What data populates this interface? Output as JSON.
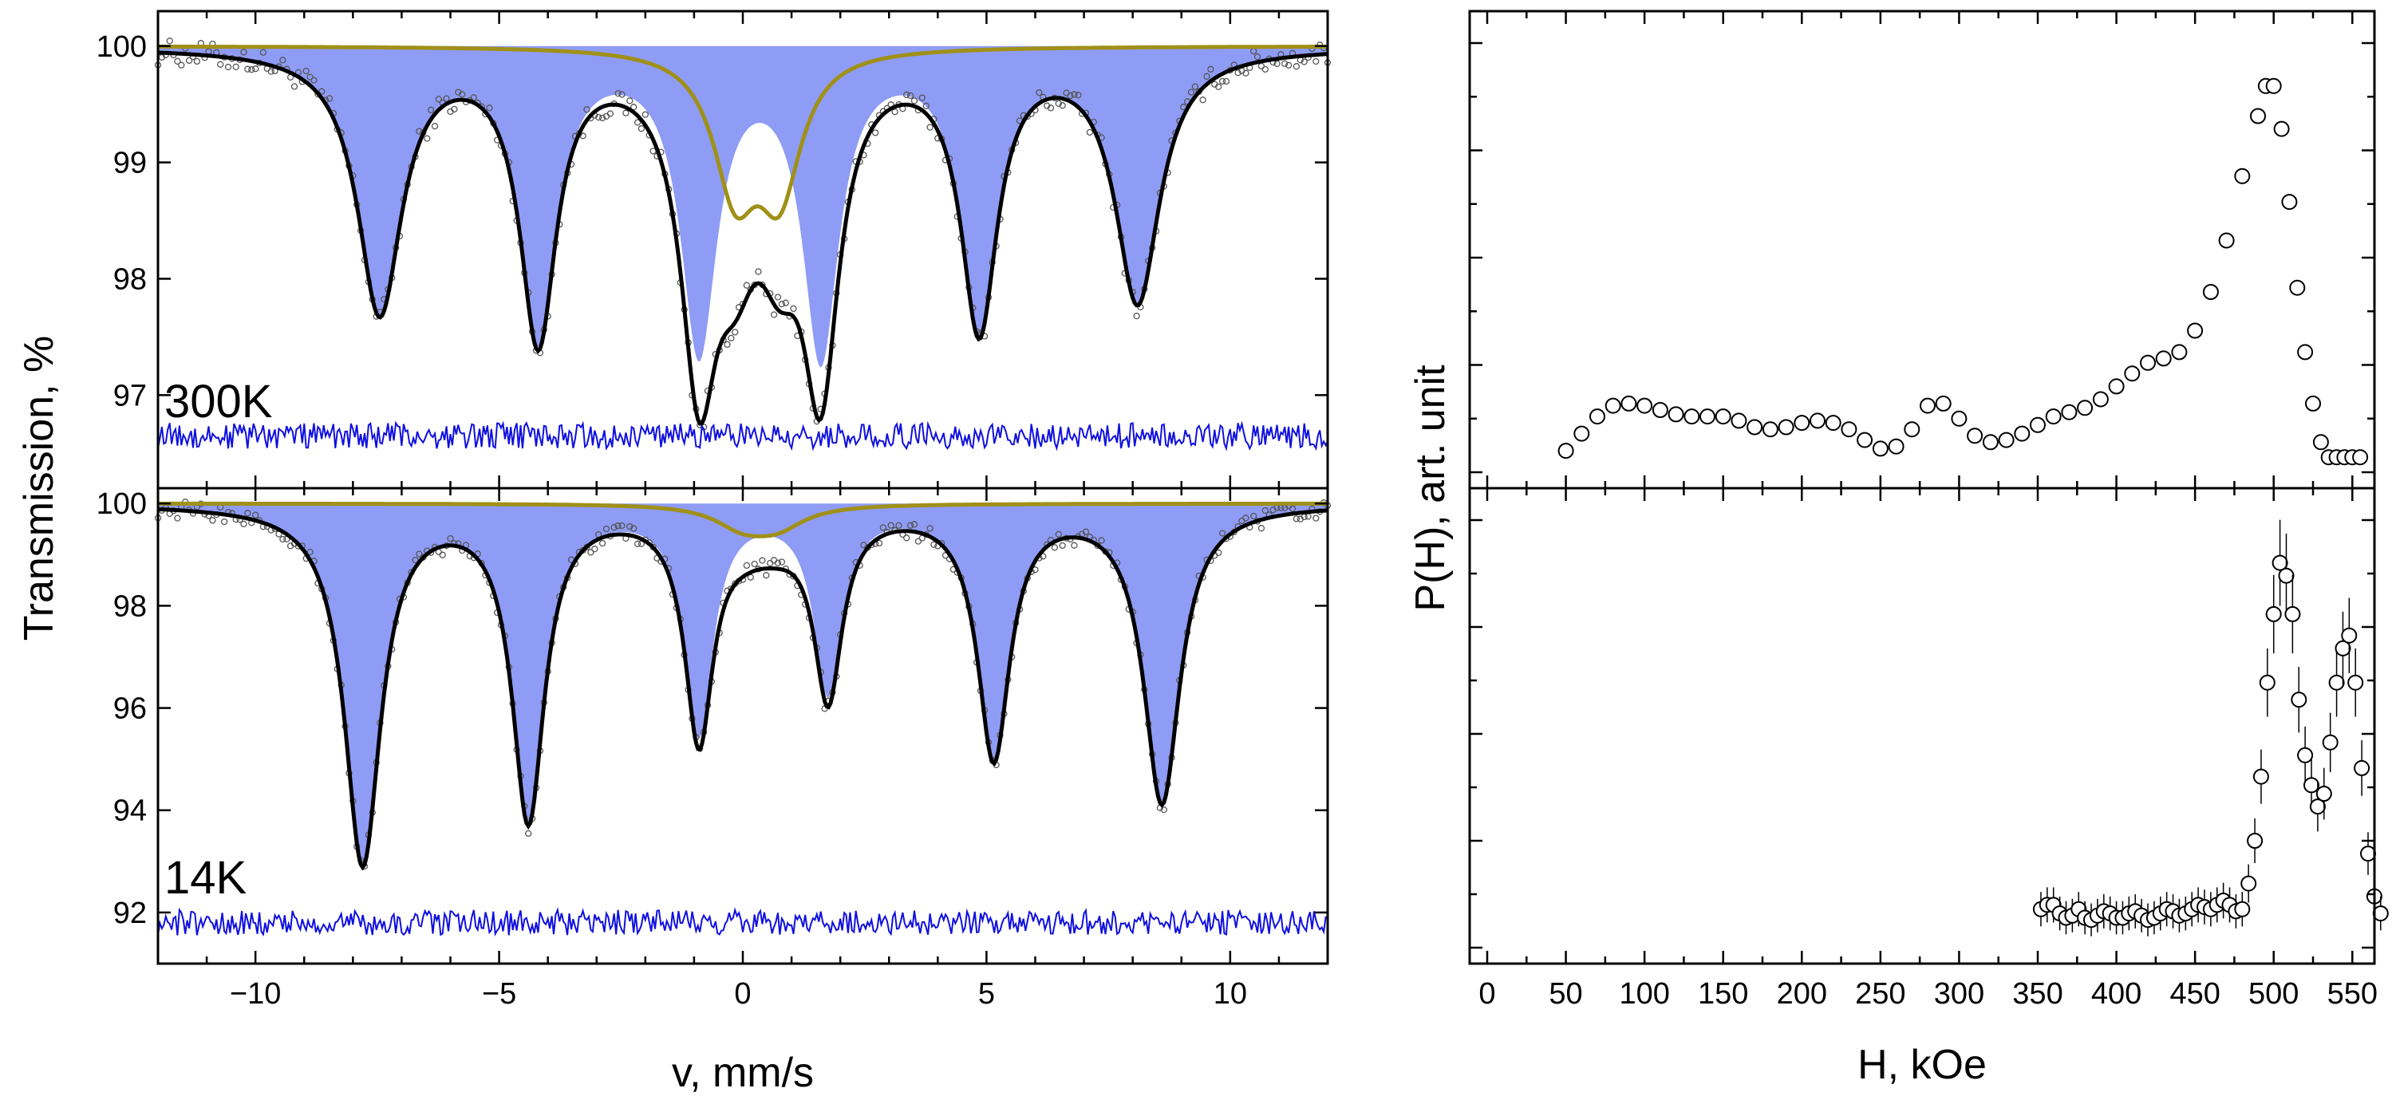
{
  "colors": {
    "fill": "#8f9cf5",
    "doublet": "#a09018",
    "fit": "#000000",
    "residual": "#1010e0",
    "points": "#555555"
  },
  "chart_data": [
    {
      "type": "line",
      "panel": "300K",
      "label": "300K",
      "x_range": [
        -12,
        12
      ],
      "y_range": [
        96.2,
        100.3
      ],
      "xticks": [
        -10,
        -5,
        0,
        5,
        10
      ],
      "xtick_labels": [
        "",
        "",
        "",
        "",
        ""
      ],
      "yticks": [
        97,
        98,
        99,
        100
      ],
      "ytick_labels": [
        "97",
        "98",
        "99",
        "100"
      ],
      "sextet_lines": [
        {
          "pos": -7.45,
          "depth": 2.25,
          "width": 0.55
        },
        {
          "pos": -4.2,
          "depth": 2.45,
          "width": 0.45
        },
        {
          "pos": -0.9,
          "depth": 2.55,
          "width": 0.45
        },
        {
          "pos": 1.6,
          "depth": 2.6,
          "width": 0.45
        },
        {
          "pos": 4.85,
          "depth": 2.35,
          "width": 0.45
        },
        {
          "pos": 8.1,
          "depth": 2.15,
          "width": 0.55
        }
      ],
      "doublet_lines": [
        {
          "pos": -0.15,
          "depth": 1.15,
          "width": 0.55
        },
        {
          "pos": 0.75,
          "depth": 1.15,
          "width": 0.55
        }
      ],
      "residual_level": 96.65
    },
    {
      "type": "line",
      "panel": "14K",
      "label": "14K",
      "x_range": [
        -12,
        12
      ],
      "y_range": [
        91.0,
        100.3
      ],
      "xticks": [
        -10,
        -5,
        0,
        5,
        10
      ],
      "xtick_labels": [
        "−10",
        "−5",
        "0",
        "5",
        "10"
      ],
      "yticks": [
        92,
        94,
        96,
        98,
        100
      ],
      "ytick_labels": [
        "92",
        "94",
        "96",
        "98",
        "100"
      ],
      "xlabel": "v, mm/s",
      "sextet_lines": [
        {
          "pos": -7.8,
          "depth": 7.0,
          "width": 0.45
        },
        {
          "pos": -4.4,
          "depth": 6.1,
          "width": 0.4
        },
        {
          "pos": -0.9,
          "depth": 4.4,
          "width": 0.35
        },
        {
          "pos": 1.75,
          "depth": 3.6,
          "width": 0.35
        },
        {
          "pos": 5.15,
          "depth": 4.9,
          "width": 0.4
        },
        {
          "pos": 8.6,
          "depth": 5.8,
          "width": 0.45
        }
      ],
      "doublet_lines": [
        {
          "pos": 0.0,
          "depth": 0.4,
          "width": 0.7
        },
        {
          "pos": 0.7,
          "depth": 0.4,
          "width": 0.7
        }
      ],
      "residual_level": 91.8
    },
    {
      "type": "scatter",
      "panel": "P(H) 300K",
      "x_range": [
        0,
        560
      ],
      "xticks": [
        0,
        50,
        100,
        150,
        200,
        250,
        300,
        350,
        400,
        450,
        500,
        550
      ],
      "xtick_labels": [
        "",
        "",
        "",
        "",
        "",
        "",
        "",
        "",
        "",
        "",
        "",
        ""
      ],
      "y_range": [
        0,
        1
      ],
      "points": [
        [
          50,
          0.05
        ],
        [
          60,
          0.09
        ],
        [
          70,
          0.13
        ],
        [
          80,
          0.155
        ],
        [
          90,
          0.16
        ],
        [
          100,
          0.155
        ],
        [
          110,
          0.145
        ],
        [
          120,
          0.135
        ],
        [
          130,
          0.13
        ],
        [
          140,
          0.13
        ],
        [
          150,
          0.13
        ],
        [
          160,
          0.12
        ],
        [
          170,
          0.105
        ],
        [
          180,
          0.1
        ],
        [
          190,
          0.105
        ],
        [
          200,
          0.115
        ],
        [
          210,
          0.12
        ],
        [
          220,
          0.115
        ],
        [
          230,
          0.1
        ],
        [
          240,
          0.075
        ],
        [
          250,
          0.055
        ],
        [
          260,
          0.06
        ],
        [
          270,
          0.1
        ],
        [
          280,
          0.155
        ],
        [
          290,
          0.16
        ],
        [
          300,
          0.125
        ],
        [
          310,
          0.085
        ],
        [
          320,
          0.07
        ],
        [
          330,
          0.075
        ],
        [
          340,
          0.09
        ],
        [
          350,
          0.11
        ],
        [
          360,
          0.13
        ],
        [
          370,
          0.14
        ],
        [
          380,
          0.15
        ],
        [
          390,
          0.17
        ],
        [
          400,
          0.2
        ],
        [
          410,
          0.23
        ],
        [
          420,
          0.255
        ],
        [
          430,
          0.265
        ],
        [
          440,
          0.28
        ],
        [
          450,
          0.33
        ],
        [
          460,
          0.42
        ],
        [
          470,
          0.54
        ],
        [
          480,
          0.69
        ],
        [
          490,
          0.83
        ],
        [
          495,
          0.9
        ],
        [
          500,
          0.9
        ],
        [
          505,
          0.8
        ],
        [
          510,
          0.63
        ],
        [
          515,
          0.43
        ],
        [
          520,
          0.28
        ],
        [
          525,
          0.16
        ],
        [
          530,
          0.07
        ],
        [
          535,
          0.035
        ],
        [
          540,
          0.035
        ],
        [
          545,
          0.035
        ],
        [
          550,
          0.035
        ],
        [
          555,
          0.035
        ]
      ]
    },
    {
      "type": "scatter",
      "panel": "P(H) 14K",
      "x_range": [
        0,
        560
      ],
      "xticks": [
        0,
        50,
        100,
        150,
        200,
        250,
        300,
        350,
        400,
        450,
        500,
        550
      ],
      "xtick_labels": [
        "0",
        "50",
        "100",
        "150",
        "200",
        "250",
        "300",
        "350",
        "400",
        "450",
        "500",
        "550"
      ],
      "xlabel": "H, kOe",
      "y_range": [
        0,
        1
      ],
      "points": [
        [
          352,
          0.09
        ],
        [
          356,
          0.1
        ],
        [
          360,
          0.1
        ],
        [
          364,
          0.08
        ],
        [
          368,
          0.07
        ],
        [
          372,
          0.075
        ],
        [
          376,
          0.09
        ],
        [
          380,
          0.07
        ],
        [
          384,
          0.065
        ],
        [
          388,
          0.075
        ],
        [
          392,
          0.085
        ],
        [
          396,
          0.08
        ],
        [
          400,
          0.07
        ],
        [
          404,
          0.07
        ],
        [
          408,
          0.08
        ],
        [
          412,
          0.085
        ],
        [
          416,
          0.075
        ],
        [
          420,
          0.065
        ],
        [
          424,
          0.07
        ],
        [
          428,
          0.08
        ],
        [
          432,
          0.09
        ],
        [
          436,
          0.085
        ],
        [
          440,
          0.075
        ],
        [
          444,
          0.08
        ],
        [
          448,
          0.09
        ],
        [
          452,
          0.1
        ],
        [
          456,
          0.095
        ],
        [
          460,
          0.09
        ],
        [
          464,
          0.1
        ],
        [
          468,
          0.11
        ],
        [
          472,
          0.1
        ],
        [
          476,
          0.085
        ],
        [
          480,
          0.09
        ],
        [
          484,
          0.15
        ],
        [
          488,
          0.25
        ],
        [
          492,
          0.4
        ],
        [
          496,
          0.62
        ],
        [
          500,
          0.78
        ],
        [
          504,
          0.9
        ],
        [
          508,
          0.87
        ],
        [
          512,
          0.78
        ],
        [
          516,
          0.58
        ],
        [
          520,
          0.45
        ],
        [
          524,
          0.38
        ],
        [
          528,
          0.33
        ],
        [
          532,
          0.36
        ],
        [
          536,
          0.48
        ],
        [
          540,
          0.62
        ],
        [
          544,
          0.7
        ],
        [
          548,
          0.73
        ],
        [
          552,
          0.62
        ],
        [
          556,
          0.42
        ],
        [
          560,
          0.22
        ],
        [
          564,
          0.12
        ],
        [
          568,
          0.08
        ]
      ]
    }
  ],
  "axes": {
    "left_ylabel": "Transmission, %",
    "right_ylabel": "P(H), art. unit"
  }
}
